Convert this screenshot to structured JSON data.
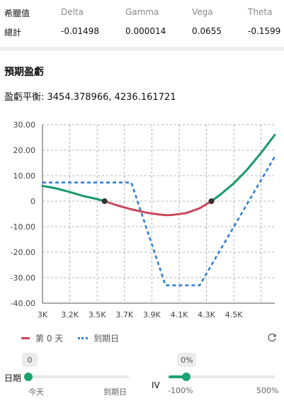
{
  "greeks": {
    "headers": [
      "希臘值",
      "Delta",
      "Gamma",
      "Vega",
      "Theta"
    ],
    "row_label": "總計",
    "values": [
      "-0.01498",
      "0.000014",
      "0.0655",
      "-0.1599"
    ]
  },
  "pnl": {
    "title": "預期盈虧",
    "breakeven_text": "盈虧平衡: 3454.378966, 4236.161721"
  },
  "colors": {
    "today": "#c9485b",
    "today_profit": "#1a9a68",
    "expiry": "#2f7fd8",
    "accent": "#1aa36f"
  },
  "chart_data": {
    "type": "line",
    "title": "",
    "xlabel": "",
    "ylabel": "",
    "x_ticks": [
      "3K",
      "3.2K",
      "3.5K",
      "3.7K",
      "3.9K",
      "4.1K",
      "4.3K",
      "4.5K"
    ],
    "y_ticks": [
      "30.00",
      "20.00",
      "10.00",
      "0",
      "-10.00",
      "-20.00",
      "-30.00",
      "-40.00"
    ],
    "xlim": [
      3000,
      4700
    ],
    "ylim": [
      -40,
      30
    ],
    "grid": true,
    "legend": "bottom-left",
    "series": [
      {
        "name": "第 0 天",
        "style": "solid",
        "x": [
          3000,
          3100,
          3200,
          3300,
          3400,
          3454.378966,
          3550,
          3650,
          3750,
          3850,
          3900,
          3950,
          4050,
          4150,
          4236.161721,
          4300,
          4400,
          4500,
          4600,
          4700
        ],
        "y": [
          6,
          5,
          3.6,
          2,
          0.8,
          0,
          -1.7,
          -3.2,
          -4.4,
          -5.2,
          -5.5,
          -5.4,
          -4.7,
          -2.8,
          0,
          2.5,
          7,
          12.5,
          19,
          26
        ]
      },
      {
        "name": "到期日",
        "style": "dashed",
        "x": [
          3000,
          3650,
          3900,
          4150,
          4700
        ],
        "y": [
          7.3,
          7.3,
          -33,
          -33,
          17.5
        ]
      }
    ],
    "breakeven_points": [
      3454.378966,
      4236.161721
    ]
  },
  "legend": {
    "today_label": "第 0 天",
    "expiry_label": "到期日"
  },
  "date_slider": {
    "label": "日期",
    "value": "0",
    "min_label": "今天",
    "max_label": "到期日",
    "fraction": 0
  },
  "iv_slider": {
    "label": "IV",
    "value": "0%",
    "min_label": "-100%",
    "max_label": "500%",
    "fraction": 0.1667
  },
  "icons": {
    "refresh": "refresh-icon"
  }
}
